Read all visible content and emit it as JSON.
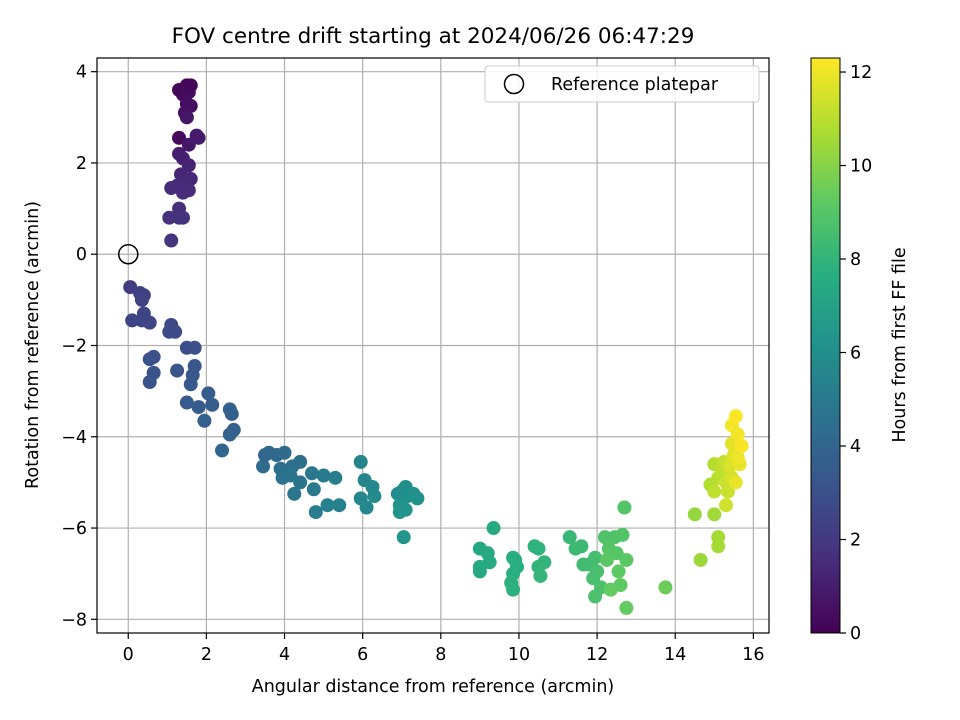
{
  "chart_data": {
    "type": "scatter",
    "title": "FOV centre drift starting at 2024/06/26 06:47:29",
    "xlabel": "Angular distance from reference (arcmin)",
    "ylabel": "Rotation from reference (arcmin)",
    "xlim": [
      -0.8,
      16.4
    ],
    "ylim": [
      -8.3,
      4.3
    ],
    "xticks": [
      0,
      2,
      4,
      6,
      8,
      10,
      12,
      14,
      16
    ],
    "yticks": [
      -8,
      -6,
      -4,
      -2,
      0,
      2,
      4
    ],
    "grid": true,
    "legend": {
      "placement": "top-right",
      "entries": [
        "Reference platepar"
      ]
    },
    "reference_point": {
      "x": 0,
      "y": 0
    },
    "colorbar": {
      "label": "Hours from first FF file",
      "range": [
        0,
        12.3
      ],
      "ticks": [
        0,
        2,
        4,
        6,
        8,
        10,
        12
      ],
      "colormap": "viridis"
    },
    "series": [
      {
        "points": [
          [
            1.5,
            3.7,
            0.1
          ],
          [
            1.3,
            3.6,
            0.2
          ],
          [
            1.4,
            3.5,
            0.3
          ],
          [
            1.55,
            3.55,
            0.35
          ],
          [
            1.6,
            3.7,
            0.25
          ],
          [
            1.5,
            3.3,
            0.45
          ],
          [
            1.6,
            3.25,
            0.5
          ],
          [
            1.45,
            3.1,
            0.6
          ],
          [
            1.5,
            3.0,
            0.7
          ],
          [
            1.3,
            2.55,
            0.3
          ],
          [
            1.55,
            2.4,
            0.8
          ],
          [
            1.8,
            2.55,
            1.0
          ],
          [
            1.75,
            2.6,
            0.9
          ],
          [
            1.3,
            2.2,
            1.0
          ],
          [
            1.4,
            2.1,
            1.1
          ],
          [
            1.55,
            1.95,
            1.2
          ],
          [
            1.35,
            1.75,
            1.3
          ],
          [
            1.6,
            1.65,
            1.35
          ],
          [
            1.5,
            1.5,
            1.4
          ],
          [
            1.25,
            1.5,
            1.45
          ],
          [
            1.1,
            1.45,
            1.5
          ],
          [
            1.4,
            1.35,
            1.55
          ],
          [
            1.55,
            1.4,
            1.5
          ],
          [
            1.3,
            1.0,
            1.6
          ],
          [
            1.05,
            0.8,
            1.7
          ],
          [
            1.3,
            0.8,
            1.75
          ],
          [
            1.4,
            0.8,
            1.8
          ],
          [
            1.1,
            0.3,
            1.85
          ],
          [
            0.05,
            -0.72,
            2.2
          ],
          [
            0.3,
            -0.85,
            2.3
          ],
          [
            0.4,
            -0.9,
            2.3
          ],
          [
            0.35,
            -1.0,
            2.4
          ],
          [
            0.1,
            -1.45,
            2.5
          ],
          [
            0.35,
            -1.45,
            2.5
          ],
          [
            0.55,
            -1.5,
            2.6
          ],
          [
            0.4,
            -1.3,
            2.5
          ],
          [
            1.1,
            -1.55,
            2.7
          ],
          [
            1.2,
            -1.7,
            2.8
          ],
          [
            1.05,
            -1.7,
            2.8
          ],
          [
            1.5,
            -2.05,
            2.9
          ],
          [
            1.7,
            -2.05,
            3.0
          ],
          [
            0.55,
            -2.3,
            3.0
          ],
          [
            0.65,
            -2.25,
            3.0
          ],
          [
            0.65,
            -2.6,
            3.1
          ],
          [
            0.55,
            -2.8,
            3.1
          ],
          [
            1.25,
            -2.55,
            3.2
          ],
          [
            1.7,
            -2.45,
            3.3
          ],
          [
            1.65,
            -2.65,
            3.3
          ],
          [
            1.6,
            -2.85,
            3.4
          ],
          [
            1.5,
            -3.25,
            3.5
          ],
          [
            1.8,
            -3.35,
            3.5
          ],
          [
            2.05,
            -3.05,
            3.6
          ],
          [
            2.15,
            -3.3,
            3.6
          ],
          [
            1.95,
            -3.65,
            3.7
          ],
          [
            2.6,
            -3.4,
            3.8
          ],
          [
            2.65,
            -3.5,
            3.8
          ],
          [
            2.6,
            -3.95,
            3.9
          ],
          [
            2.7,
            -3.85,
            3.9
          ],
          [
            2.4,
            -4.3,
            4.0
          ],
          [
            3.5,
            -4.4,
            4.1
          ],
          [
            3.6,
            -4.35,
            4.2
          ],
          [
            3.8,
            -4.4,
            4.2
          ],
          [
            4.0,
            -4.35,
            4.3
          ],
          [
            3.45,
            -4.65,
            4.3
          ],
          [
            3.9,
            -4.7,
            4.4
          ],
          [
            4.2,
            -4.65,
            4.5
          ],
          [
            4.4,
            -4.55,
            4.5
          ],
          [
            3.95,
            -4.9,
            4.6
          ],
          [
            4.15,
            -4.85,
            4.7
          ],
          [
            4.4,
            -5.0,
            4.7
          ],
          [
            4.25,
            -5.25,
            4.8
          ],
          [
            4.7,
            -4.8,
            4.9
          ],
          [
            5.0,
            -4.85,
            5.0
          ],
          [
            4.75,
            -5.15,
            5.0
          ],
          [
            4.8,
            -5.65,
            5.1
          ],
          [
            5.3,
            -4.9,
            5.2
          ],
          [
            5.1,
            -5.5,
            5.3
          ],
          [
            5.4,
            -5.5,
            5.3
          ],
          [
            5.95,
            -4.55,
            5.5
          ],
          [
            6.05,
            -4.95,
            5.6
          ],
          [
            5.95,
            -5.35,
            5.6
          ],
          [
            6.1,
            -5.55,
            5.7
          ],
          [
            6.25,
            -5.1,
            5.7
          ],
          [
            6.3,
            -5.3,
            5.8
          ],
          [
            6.9,
            -5.25,
            5.9
          ],
          [
            7.0,
            -5.2,
            6.0
          ],
          [
            7.1,
            -5.1,
            6.0
          ],
          [
            7.15,
            -5.3,
            6.1
          ],
          [
            7.3,
            -5.25,
            6.1
          ],
          [
            7.4,
            -5.35,
            6.2
          ],
          [
            6.95,
            -5.5,
            6.2
          ],
          [
            7.1,
            -5.6,
            6.3
          ],
          [
            6.95,
            -5.65,
            6.3
          ],
          [
            7.05,
            -6.2,
            6.4
          ],
          [
            9.0,
            -6.45,
            7.3
          ],
          [
            9.35,
            -6.0,
            7.4
          ],
          [
            9.2,
            -6.55,
            7.4
          ],
          [
            9.25,
            -6.75,
            7.5
          ],
          [
            9.0,
            -6.85,
            7.5
          ],
          [
            9.0,
            -6.95,
            7.5
          ],
          [
            9.85,
            -6.65,
            7.6
          ],
          [
            9.9,
            -6.7,
            7.6
          ],
          [
            9.95,
            -6.85,
            7.7
          ],
          [
            9.85,
            -7.0,
            7.7
          ],
          [
            9.8,
            -7.2,
            7.8
          ],
          [
            9.85,
            -7.35,
            7.8
          ],
          [
            10.4,
            -6.4,
            7.9
          ],
          [
            10.5,
            -6.45,
            7.9
          ],
          [
            10.65,
            -6.75,
            8.0
          ],
          [
            10.5,
            -6.85,
            8.0
          ],
          [
            10.55,
            -7.05,
            8.1
          ],
          [
            11.3,
            -6.2,
            8.2
          ],
          [
            11.45,
            -6.45,
            8.3
          ],
          [
            11.6,
            -6.4,
            8.3
          ],
          [
            11.65,
            -6.8,
            8.4
          ],
          [
            11.8,
            -6.8,
            8.4
          ],
          [
            11.95,
            -6.65,
            8.5
          ],
          [
            12.0,
            -6.95,
            8.6
          ],
          [
            11.9,
            -7.1,
            8.6
          ],
          [
            12.1,
            -7.3,
            8.7
          ],
          [
            11.95,
            -7.5,
            8.7
          ],
          [
            12.2,
            -6.2,
            8.8
          ],
          [
            12.45,
            -6.2,
            8.8
          ],
          [
            12.7,
            -5.55,
            8.9
          ],
          [
            12.65,
            -6.15,
            8.9
          ],
          [
            12.3,
            -6.45,
            9.0
          ],
          [
            12.5,
            -6.55,
            9.0
          ],
          [
            12.25,
            -6.7,
            9.1
          ],
          [
            12.75,
            -6.7,
            9.1
          ],
          [
            12.55,
            -6.95,
            9.2
          ],
          [
            12.6,
            -7.25,
            9.2
          ],
          [
            12.35,
            -7.35,
            9.3
          ],
          [
            12.75,
            -7.75,
            9.3
          ],
          [
            13.75,
            -7.3,
            9.5
          ],
          [
            14.5,
            -5.7,
            10.3
          ],
          [
            14.65,
            -6.7,
            10.4
          ],
          [
            15.0,
            -5.7,
            10.5
          ],
          [
            15.1,
            -6.2,
            10.6
          ],
          [
            15.1,
            -6.4,
            10.6
          ],
          [
            14.9,
            -5.05,
            10.8
          ],
          [
            15.0,
            -4.6,
            10.9
          ],
          [
            15.1,
            -4.9,
            11.0
          ],
          [
            15.2,
            -4.7,
            11.1
          ],
          [
            15.25,
            -4.55,
            11.2
          ],
          [
            15.0,
            -5.2,
            11.1
          ],
          [
            15.3,
            -5.0,
            11.3
          ],
          [
            15.35,
            -5.2,
            11.3
          ],
          [
            15.3,
            -5.5,
            11.4
          ],
          [
            15.45,
            -4.9,
            11.5
          ],
          [
            15.4,
            -4.65,
            11.6
          ],
          [
            15.5,
            -4.4,
            11.7
          ],
          [
            15.45,
            -4.15,
            11.8
          ],
          [
            15.55,
            -4.25,
            11.8
          ],
          [
            15.65,
            -4.6,
            11.9
          ],
          [
            15.55,
            -5.0,
            11.9
          ],
          [
            15.6,
            -4.45,
            12.0
          ],
          [
            15.45,
            -3.75,
            12.1
          ],
          [
            15.6,
            -3.95,
            12.1
          ],
          [
            15.55,
            -3.55,
            12.3
          ],
          [
            15.7,
            -4.2,
            12.2
          ]
        ]
      }
    ]
  }
}
